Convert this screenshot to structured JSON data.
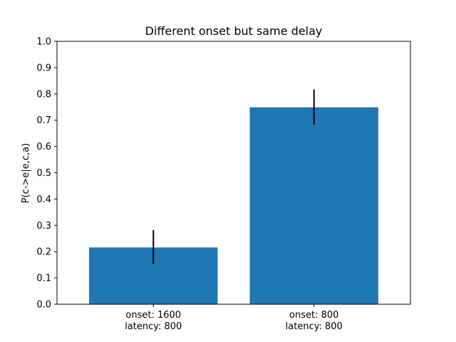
{
  "chart_data": {
    "type": "bar",
    "title": "Different onset but same delay",
    "xlabel": "",
    "ylabel": "P(c->e|e,c,a)",
    "ylim": [
      0,
      1.0
    ],
    "yticks": [
      "0.0",
      "0.1",
      "0.2",
      "0.3",
      "0.4",
      "0.5",
      "0.6",
      "0.7",
      "0.8",
      "0.9",
      "1.0"
    ],
    "categories": [
      [
        "onset: 1600",
        "latency: 800"
      ],
      [
        "onset: 800",
        "latency: 800"
      ]
    ],
    "values": [
      0.216,
      0.749
    ],
    "error_low": [
      0.153,
      0.683
    ],
    "error_high": [
      0.282,
      0.817
    ],
    "bar_color": "#1f77b4",
    "error_color": "#000000",
    "grid": false,
    "legend": "none"
  }
}
